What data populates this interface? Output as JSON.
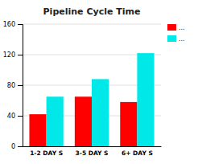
{
  "chart_data": {
    "type": "bar",
    "title": "Pipeline Cycle Time",
    "categories": [
      "1-2 DAY S",
      "3-5 DAY S",
      "6+ DAY S"
    ],
    "series": [
      {
        "name": "...",
        "color": "#ff0000",
        "values": [
          42,
          65,
          58
        ]
      },
      {
        "name": "...",
        "color": "#00e8e8",
        "values": [
          65,
          88,
          122
        ]
      }
    ],
    "ylim": [
      0,
      160
    ],
    "yticks": [
      0,
      40,
      80,
      120,
      160
    ],
    "grid": true,
    "legend": "right"
  }
}
